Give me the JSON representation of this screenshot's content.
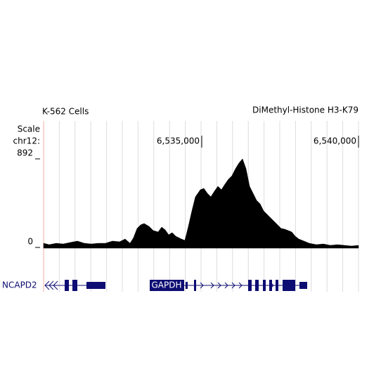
{
  "chart_data": {
    "type": "area",
    "cell_line": "K-562 Cells",
    "title": "DiMethyl-Histone H3-K79",
    "scale_label": "Scale",
    "chrom_label": "chr12:",
    "color": "#000000",
    "xlim": [
      6529955,
      6540000
    ],
    "xticks": [
      {
        "value": 6535000,
        "label": "6,535,000"
      },
      {
        "value": 6540000,
        "label": "6,540,000"
      }
    ],
    "ylim": [
      0,
      892
    ],
    "yticks": [
      0,
      892
    ],
    "x": [
      6529955,
      6530135,
      6530359,
      6530583,
      6530807,
      6531032,
      6531256,
      6531480,
      6531704,
      6531928,
      6532153,
      6532377,
      6532556,
      6532713,
      6532825,
      6532937,
      6533049,
      6533162,
      6533318,
      6533453,
      6533610,
      6533722,
      6533834,
      6533946,
      6534058,
      6534170,
      6534350,
      6534462,
      6534574,
      6534686,
      6534798,
      6534955,
      6535067,
      6535179,
      6535291,
      6535404,
      6535516,
      6535628,
      6535740,
      6535852,
      6535964,
      6536076,
      6536188,
      6536300,
      6536412,
      6536525,
      6536637,
      6536749,
      6536861,
      6536973,
      6537085,
      6537197,
      6537309,
      6537421,
      6537533,
      6537646,
      6537758,
      6537870,
      6537982,
      6538094,
      6538206,
      6538430,
      6538654,
      6538879,
      6539103,
      6539327,
      6539551,
      6539775,
      6540000
    ],
    "values": [
      42,
      28,
      42,
      35,
      50,
      64,
      42,
      35,
      42,
      42,
      64,
      57,
      85,
      42,
      99,
      191,
      227,
      241,
      212,
      170,
      156,
      205,
      177,
      127,
      149,
      113,
      85,
      71,
      212,
      368,
      510,
      581,
      595,
      545,
      510,
      566,
      616,
      581,
      637,
      687,
      722,
      793,
      850,
      892,
      793,
      616,
      545,
      474,
      439,
      368,
      333,
      297,
      262,
      227,
      191,
      184,
      170,
      156,
      113,
      85,
      71,
      42,
      28,
      35,
      21,
      28,
      21,
      14,
      21
    ],
    "genes": [
      "NCAPD2",
      "GAPDH"
    ]
  }
}
